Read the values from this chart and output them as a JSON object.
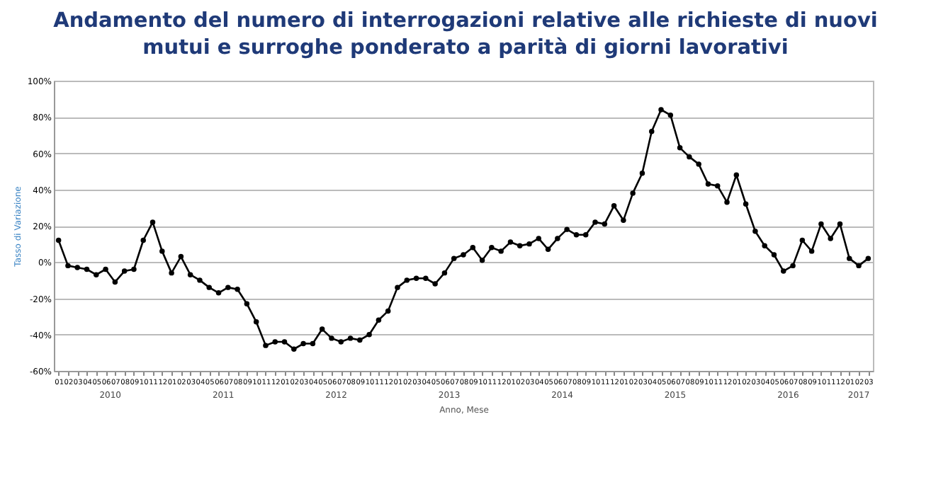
{
  "chart_data": {
    "type": "line",
    "title": "Andamento del numero di interrogazioni relative alle richieste di nuovi mutui e surroghe ponderato a parità di giorni lavorativi",
    "xlabel": "Anno, Mese",
    "ylabel": "Tasso di Variazione",
    "categories": [
      "01",
      "02",
      "03",
      "04",
      "05",
      "06",
      "07",
      "08",
      "09",
      "10",
      "11",
      "12",
      "01",
      "02",
      "03",
      "04",
      "05",
      "06",
      "07",
      "08",
      "09",
      "10",
      "11",
      "12",
      "01",
      "02",
      "03",
      "04",
      "05",
      "06",
      "07",
      "08",
      "09",
      "10",
      "11",
      "12",
      "01",
      "02",
      "03",
      "04",
      "05",
      "06",
      "07",
      "08",
      "09",
      "10",
      "11",
      "12",
      "01",
      "02",
      "03",
      "04",
      "05",
      "06",
      "07",
      "08",
      "09",
      "10",
      "11",
      "12",
      "01",
      "02",
      "03",
      "04",
      "05",
      "06",
      "07",
      "08",
      "09",
      "10",
      "11",
      "12",
      "01",
      "02",
      "03",
      "04",
      "05",
      "06",
      "07",
      "08",
      "09",
      "10",
      "11",
      "12",
      "01",
      "02",
      "03"
    ],
    "series": [
      {
        "color": "#000000",
        "values": [
          12,
          -2,
          -3,
          -4,
          -7,
          -4,
          -11,
          -5,
          -4,
          12,
          22,
          6,
          -6,
          3,
          -7,
          -10,
          -14,
          -17,
          -14,
          -15,
          -23,
          -33,
          -46,
          -44,
          -44,
          -48,
          -45,
          -45,
          -37,
          -42,
          -44,
          -42,
          -43,
          -40,
          -32,
          -27,
          -14,
          -10,
          -9,
          -9,
          -12,
          -6,
          2,
          4,
          8,
          1,
          8,
          6,
          11,
          9,
          10,
          13,
          7,
          13,
          18,
          15,
          15,
          22,
          21,
          31,
          23,
          38,
          49,
          72,
          84,
          81,
          63,
          58,
          54,
          43,
          42,
          33,
          48,
          32,
          17,
          9,
          4,
          -5,
          -2,
          12,
          6,
          21,
          13,
          21,
          2,
          -2,
          2
        ]
      }
    ],
    "annotations": [
      "2010",
      "2011",
      "2012",
      "2013",
      "2014",
      "2015",
      "2016",
      "2017"
    ],
    "ylim": [
      -60,
      100
    ],
    "yticks": [
      {
        "value": -60,
        "label": "-60%"
      },
      {
        "value": -40,
        "label": "-40%"
      },
      {
        "value": -20,
        "label": "-20%"
      },
      {
        "value": 0,
        "label": "0%"
      },
      {
        "value": 20,
        "label": "20%"
      },
      {
        "value": 40,
        "label": "40%"
      },
      {
        "value": 60,
        "label": "60%"
      },
      {
        "value": 80,
        "label": "80%"
      },
      {
        "value": 100,
        "label": "100%"
      }
    ],
    "grid": "y",
    "marker": "circle",
    "line_style": "solid",
    "legend": false
  }
}
